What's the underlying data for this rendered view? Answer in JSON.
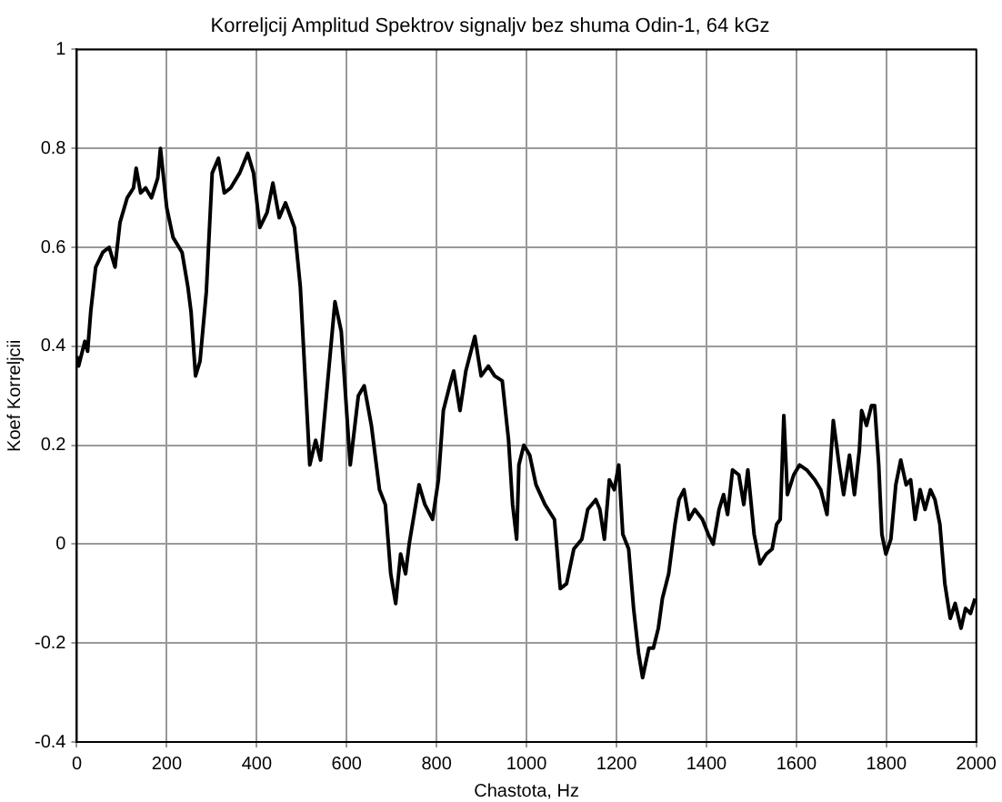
{
  "chart_data": {
    "type": "line",
    "title": "Korreljcij Amplitud Spektrov signaljv bez shuma Odin-1, 64 kGz",
    "xlabel": "Chastota, Hz",
    "ylabel": "Koef Korreljcii",
    "x": [
      0,
      4,
      18,
      24,
      31,
      42,
      58,
      72,
      85,
      96,
      112,
      126,
      132,
      142,
      153,
      166,
      180,
      186,
      200,
      214,
      234,
      247,
      254,
      264,
      274,
      288,
      301,
      315,
      328,
      342,
      362,
      380,
      393,
      407,
      423,
      436,
      450,
      464,
      484,
      497,
      518,
      531,
      542,
      558,
      574,
      588,
      608,
      626,
      639,
      655,
      673,
      686,
      698,
      709,
      720,
      731,
      739,
      750,
      761,
      774,
      791,
      804,
      815,
      829,
      838,
      852,
      865,
      885,
      899,
      915,
      929,
      946,
      960,
      969,
      978,
      983,
      994,
      1007,
      1021,
      1041,
      1062,
      1075,
      1089,
      1105,
      1123,
      1136,
      1154,
      1163,
      1173,
      1184,
      1195,
      1205,
      1214,
      1227,
      1238,
      1249,
      1258,
      1272,
      1282,
      1293,
      1302,
      1316,
      1330,
      1339,
      1350,
      1361,
      1374,
      1391,
      1404,
      1415,
      1428,
      1438,
      1447,
      1458,
      1472,
      1483,
      1492,
      1506,
      1519,
      1533,
      1546,
      1556,
      1564,
      1572,
      1580,
      1594,
      1607,
      1623,
      1641,
      1654,
      1668,
      1682,
      1695,
      1705,
      1718,
      1729,
      1740,
      1745,
      1756,
      1767,
      1774,
      1783,
      1790,
      1799,
      1810,
      1821,
      1832,
      1844,
      1854,
      1864,
      1875,
      1886,
      1898,
      1908,
      1919,
      1930,
      1942,
      1953,
      1966,
      1976,
      1987,
      1997
    ],
    "series": [
      {
        "color": "#000000",
        "values": [
          0.38,
          0.36,
          0.41,
          0.39,
          0.47,
          0.56,
          0.59,
          0.6,
          0.56,
          0.65,
          0.7,
          0.72,
          0.76,
          0.71,
          0.72,
          0.7,
          0.74,
          0.8,
          0.68,
          0.62,
          0.59,
          0.52,
          0.47,
          0.34,
          0.37,
          0.51,
          0.75,
          0.78,
          0.71,
          0.72,
          0.75,
          0.79,
          0.75,
          0.64,
          0.67,
          0.73,
          0.66,
          0.69,
          0.64,
          0.52,
          0.16,
          0.21,
          0.17,
          0.33,
          0.49,
          0.43,
          0.16,
          0.3,
          0.32,
          0.24,
          0.11,
          0.08,
          -0.06,
          -0.12,
          -0.02,
          -0.06,
          0.0,
          0.06,
          0.12,
          0.08,
          0.05,
          0.13,
          0.27,
          0.32,
          0.35,
          0.27,
          0.35,
          0.42,
          0.34,
          0.36,
          0.34,
          0.33,
          0.21,
          0.08,
          0.01,
          0.16,
          0.2,
          0.18,
          0.12,
          0.08,
          0.05,
          -0.09,
          -0.08,
          -0.01,
          0.01,
          0.07,
          0.09,
          0.07,
          0.01,
          0.13,
          0.11,
          0.16,
          0.02,
          -0.01,
          -0.13,
          -0.22,
          -0.27,
          -0.21,
          -0.21,
          -0.17,
          -0.11,
          -0.06,
          0.04,
          0.09,
          0.11,
          0.05,
          0.07,
          0.05,
          0.02,
          0.0,
          0.07,
          0.1,
          0.06,
          0.15,
          0.14,
          0.08,
          0.15,
          0.02,
          -0.04,
          -0.02,
          -0.01,
          0.04,
          0.05,
          0.26,
          0.1,
          0.14,
          0.16,
          0.15,
          0.13,
          0.11,
          0.06,
          0.25,
          0.16,
          0.1,
          0.18,
          0.1,
          0.19,
          0.27,
          0.24,
          0.28,
          0.28,
          0.16,
          0.02,
          -0.02,
          0.01,
          0.12,
          0.17,
          0.12,
          0.13,
          0.05,
          0.11,
          0.07,
          0.11,
          0.09,
          0.04,
          -0.08,
          -0.15,
          -0.12,
          -0.17,
          -0.13,
          -0.14,
          -0.11
        ]
      }
    ],
    "xlim": [
      0,
      2000
    ],
    "xticks": [
      0,
      200,
      400,
      600,
      800,
      1000,
      1200,
      1400,
      1600,
      1800,
      2000
    ],
    "ylim": [
      -0.4,
      1
    ],
    "yticks": [
      -0.4,
      -0.2,
      0,
      0.2,
      0.4,
      0.6,
      0.8,
      1
    ],
    "grid": true,
    "legend": false,
    "marker": "none",
    "line_style": "solid"
  }
}
